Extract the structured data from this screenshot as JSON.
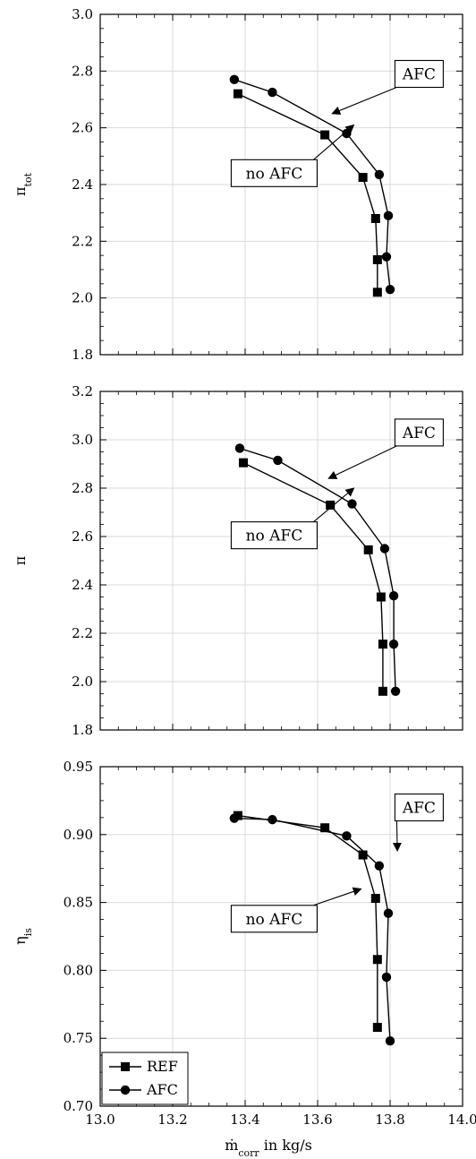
{
  "figure": {
    "xlabel": "ṁcorr in kg/s",
    "xlabel_main": "ṁ",
    "xlabel_sub": "corr",
    "xlabel_rest": " in kg/s"
  },
  "chart_data": [
    {
      "type": "line",
      "ylabel": "πtot",
      "ylabel_main": "π",
      "ylabel_sub": "tot",
      "xlim": [
        13.0,
        14.0
      ],
      "ylim": [
        1.8,
        3.0
      ],
      "xticks": [
        13.0,
        13.2,
        13.4,
        13.6,
        13.8,
        14.0
      ],
      "yticks": [
        1.8,
        2.0,
        2.2,
        2.4,
        2.6,
        2.8,
        3.0
      ],
      "grid": true,
      "series": [
        {
          "name": "REF",
          "marker": "square",
          "x": [
            13.765,
            13.765,
            13.76,
            13.725,
            13.62,
            13.38
          ],
          "y": [
            2.02,
            2.135,
            2.28,
            2.425,
            2.575,
            2.72
          ]
        },
        {
          "name": "AFC",
          "marker": "circle",
          "x": [
            13.8,
            13.79,
            13.795,
            13.77,
            13.68,
            13.475,
            13.37
          ],
          "y": [
            2.03,
            2.145,
            2.29,
            2.435,
            2.58,
            2.725,
            2.77
          ]
        }
      ],
      "annotations": [
        {
          "text": "AFC",
          "box_x": 13.88,
          "box_y": 2.79,
          "arrow_to": [
            13.64,
            2.65
          ]
        },
        {
          "text": "no AFC",
          "box_x": 13.48,
          "box_y": 2.44,
          "arrow_to": [
            13.7,
            2.61
          ]
        }
      ]
    },
    {
      "type": "line",
      "ylabel": "π",
      "ylabel_main": "π",
      "ylabel_sub": "",
      "xlim": [
        13.0,
        14.0
      ],
      "ylim": [
        1.8,
        3.2
      ],
      "xticks": [
        13.0,
        13.2,
        13.4,
        13.6,
        13.8,
        14.0
      ],
      "yticks": [
        1.8,
        2.0,
        2.2,
        2.4,
        2.6,
        2.8,
        3.0,
        3.2
      ],
      "grid": true,
      "series": [
        {
          "name": "REF",
          "marker": "square",
          "x": [
            13.78,
            13.78,
            13.775,
            13.74,
            13.635,
            13.395
          ],
          "y": [
            1.96,
            2.155,
            2.35,
            2.545,
            2.73,
            2.905
          ]
        },
        {
          "name": "AFC",
          "marker": "circle",
          "x": [
            13.815,
            13.81,
            13.81,
            13.785,
            13.695,
            13.49,
            13.385
          ],
          "y": [
            1.96,
            2.155,
            2.355,
            2.55,
            2.735,
            2.915,
            2.965
          ]
        }
      ],
      "annotations": [
        {
          "text": "AFC",
          "box_x": 13.88,
          "box_y": 3.03,
          "arrow_to": [
            13.63,
            2.84
          ]
        },
        {
          "text": "no AFC",
          "box_x": 13.48,
          "box_y": 2.605,
          "arrow_to": [
            13.7,
            2.8
          ]
        }
      ]
    },
    {
      "type": "line",
      "ylabel": "ηis",
      "ylabel_main": "η",
      "ylabel_sub": "is",
      "xlim": [
        13.0,
        14.0
      ],
      "ylim": [
        0.7,
        0.95
      ],
      "xticks": [
        13.0,
        13.2,
        13.4,
        13.6,
        13.8,
        14.0
      ],
      "yticks": [
        0.7,
        0.75,
        0.8,
        0.85,
        0.9,
        0.95
      ],
      "grid": true,
      "series": [
        {
          "name": "REF",
          "marker": "square",
          "x": [
            13.765,
            13.765,
            13.76,
            13.725,
            13.62,
            13.38
          ],
          "y": [
            0.758,
            0.808,
            0.853,
            0.885,
            0.905,
            0.914
          ]
        },
        {
          "name": "AFC",
          "marker": "circle",
          "x": [
            13.8,
            13.79,
            13.795,
            13.77,
            13.68,
            13.475,
            13.37
          ],
          "y": [
            0.748,
            0.795,
            0.842,
            0.877,
            0.899,
            0.911,
            0.912
          ]
        }
      ],
      "annotations": [
        {
          "text": "AFC",
          "box_x": 13.88,
          "box_y": 0.92,
          "arrow_to": [
            13.82,
            0.888
          ]
        },
        {
          "text": "no AFC",
          "box_x": 13.48,
          "box_y": 0.838,
          "arrow_to": [
            13.72,
            0.86
          ]
        }
      ],
      "legend": {
        "position": "bottom-left",
        "entries": [
          "REF",
          "AFC"
        ]
      }
    }
  ],
  "xtick_labels": [
    "13.0",
    "13.2",
    "13.4",
    "13.6",
    "13.8",
    "14.0"
  ],
  "ytick_labels": [
    [
      "1.8",
      "2.0",
      "2.2",
      "2.4",
      "2.6",
      "2.8",
      "3.0"
    ],
    [
      "1.8",
      "2.0",
      "2.2",
      "2.4",
      "2.6",
      "2.8",
      "3.0",
      "3.2"
    ],
    [
      "0.70",
      "0.75",
      "0.80",
      "0.85",
      "0.90",
      "0.95"
    ]
  ]
}
